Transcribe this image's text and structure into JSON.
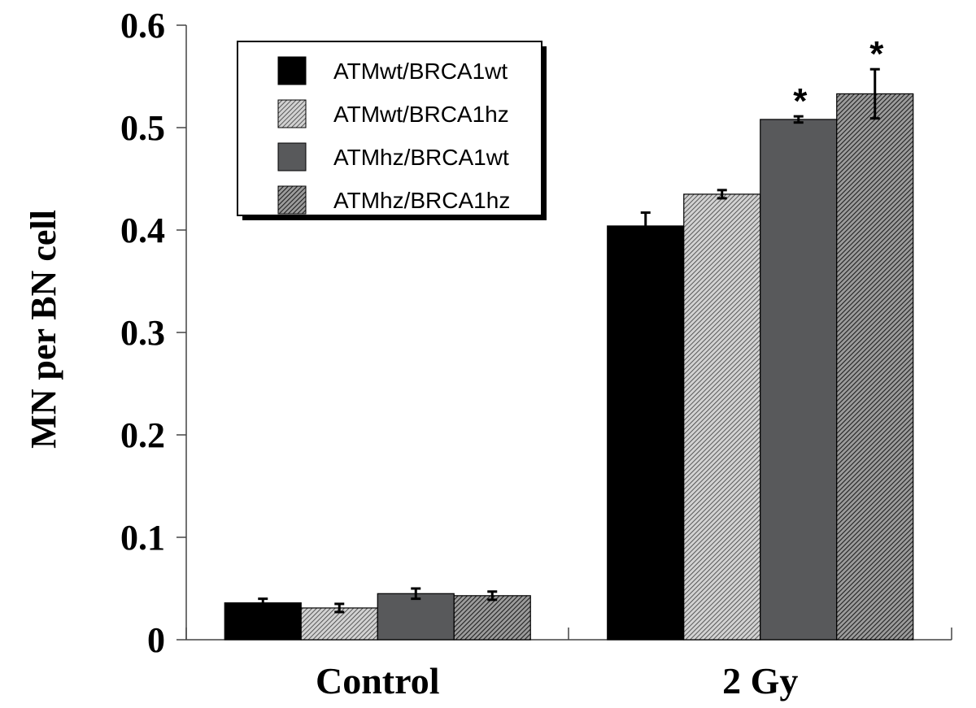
{
  "chart_data": {
    "type": "bar",
    "title": "",
    "xlabel": "",
    "ylabel": "MN per BN cell",
    "ylim": [
      0,
      0.6
    ],
    "yticks": [
      0,
      0.1,
      0.2,
      0.3,
      0.4,
      0.5,
      0.6
    ],
    "ytick_labels": [
      "0",
      "0.1",
      "0.2",
      "0.3",
      "0.4",
      "0.5",
      "0.6"
    ],
    "categories": [
      "Control",
      "2 Gy"
    ],
    "legend_position": "top-left",
    "series": [
      {
        "name": "ATMwt/BRCA1wt",
        "values": [
          0.036,
          0.404
        ],
        "errors": [
          0.004,
          0.013
        ],
        "significance": [
          "",
          ""
        ],
        "fill": "solid",
        "color": "#000000",
        "text_color": "#000000"
      },
      {
        "name": "ATMwt/BRCA1hz",
        "values": [
          0.031,
          0.435
        ],
        "errors": [
          0.004,
          0.004
        ],
        "significance": [
          "",
          ""
        ],
        "fill": "hatch-light",
        "color": "#9a9a9a",
        "text_color": "#000000"
      },
      {
        "name": "ATMhz/BRCA1wt",
        "values": [
          0.045,
          0.508
        ],
        "errors": [
          0.005,
          0.003
        ],
        "significance": [
          "",
          "*"
        ],
        "fill": "solid",
        "color": "#58595b",
        "text_color": "#6e6e6e"
      },
      {
        "name": "ATMhz/BRCA1hz",
        "values": [
          0.043,
          0.533
        ],
        "errors": [
          0.004,
          0.024
        ],
        "significance": [
          "",
          "*"
        ],
        "fill": "hatch-dark",
        "color": "#777777",
        "text_color": "#000000"
      }
    ]
  }
}
